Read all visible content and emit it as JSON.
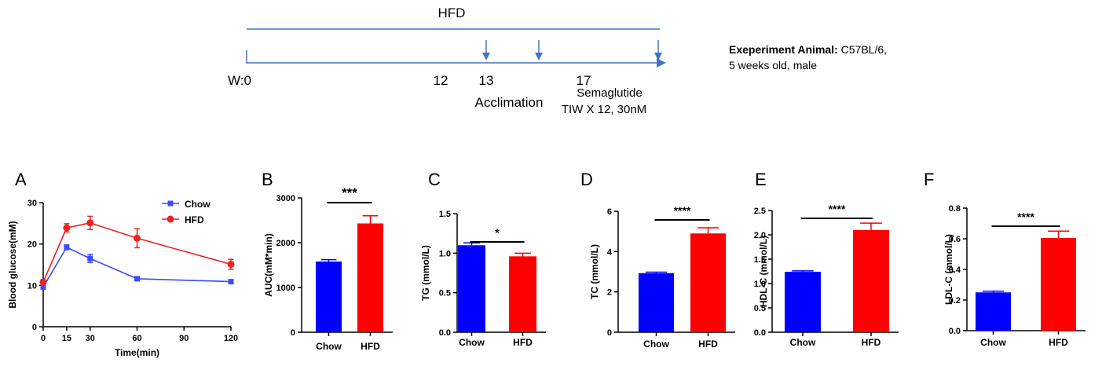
{
  "timeline": {
    "top_label": "HFD",
    "week_labels": [
      "W:0",
      "12",
      "13",
      "17"
    ],
    "phase_labels": {
      "acclimation": "Acclimation",
      "treatment_line1": "Semaglutide",
      "treatment_line2": "TIW X 12, 30nM"
    },
    "animal_info": {
      "bold_part": "Exeperiment Animal:",
      "normal_part": " C57BL/6,",
      "line2": "5 weeks old, male"
    },
    "line_color": "#4472c4"
  },
  "colors": {
    "chow": "#0000ff",
    "hfd": "#ff0000",
    "line_chow": "#3a4bff",
    "line_hfd": "#ee2222"
  },
  "chart_data": [
    {
      "panel": "A",
      "type": "line",
      "xlabel": "Time(min)",
      "ylabel": "Blood glucose(mM)",
      "xticks": [
        0,
        15,
        30,
        60,
        90,
        120
      ],
      "yticks": [
        0,
        10,
        20,
        30
      ],
      "xlim": [
        0,
        120
      ],
      "ylim": [
        0,
        30
      ],
      "grid": false,
      "legend_position": "top-right",
      "series": [
        {
          "name": "Chow",
          "x": [
            0,
            15,
            30,
            60,
            120
          ],
          "y": [
            9.6,
            19.2,
            16.5,
            11.6,
            10.9
          ],
          "err": [
            0.4,
            0.6,
            1.0,
            0.3,
            0.3
          ]
        },
        {
          "name": "HFD",
          "x": [
            0,
            15,
            30,
            60,
            120
          ],
          "y": [
            10.8,
            23.9,
            25.1,
            21.4,
            15.1
          ],
          "err": [
            0.6,
            1.0,
            1.6,
            2.3,
            1.2
          ]
        }
      ]
    },
    {
      "panel": "B",
      "type": "bar",
      "ylabel": "AUC(mM*min)",
      "categories": [
        "Chow",
        "HFD"
      ],
      "values": [
        1580,
        2430
      ],
      "err": [
        40,
        170
      ],
      "yticks": [
        0,
        1000,
        2000,
        3000
      ],
      "ylim": [
        0,
        3000
      ],
      "significance": "***"
    },
    {
      "panel": "C",
      "type": "bar",
      "ylabel": "TG (mmol/L)",
      "categories": [
        "Chow",
        "HFD"
      ],
      "values": [
        1.1,
        0.96
      ],
      "err": [
        0.03,
        0.04
      ],
      "yticks": [
        "0.0",
        "0.5",
        "1.0",
        "1.5"
      ],
      "ylim": [
        0,
        1.5
      ],
      "significance": "*"
    },
    {
      "panel": "D",
      "type": "bar",
      "ylabel": "TC (mmol/L)",
      "categories": [
        "Chow",
        "HFD"
      ],
      "values": [
        2.93,
        4.9
      ],
      "err": [
        0.05,
        0.28
      ],
      "yticks": [
        0,
        2,
        4,
        6
      ],
      "ylim": [
        0,
        6
      ],
      "significance": "****"
    },
    {
      "panel": "E",
      "type": "bar",
      "ylabel": "HDL-C (mmol/L)",
      "categories": [
        "Chow",
        "HFD"
      ],
      "values": [
        1.24,
        2.1
      ],
      "err": [
        0.02,
        0.14
      ],
      "yticks": [
        "0.0",
        "0.5",
        "1.0",
        "1.5",
        "2.0",
        "2.5"
      ],
      "ylim": [
        0,
        2.5
      ],
      "significance": "****"
    },
    {
      "panel": "F",
      "type": "bar",
      "ylabel": "LDL-C (mmol/L)",
      "categories": [
        "Chow",
        "HFD"
      ],
      "values": [
        0.25,
        0.605
      ],
      "err": [
        0.008,
        0.045
      ],
      "yticks": [
        "0.0",
        "0.2",
        "0.4",
        "0.6",
        "0.8"
      ],
      "ylim": [
        0,
        0.8
      ],
      "significance": "****"
    }
  ]
}
